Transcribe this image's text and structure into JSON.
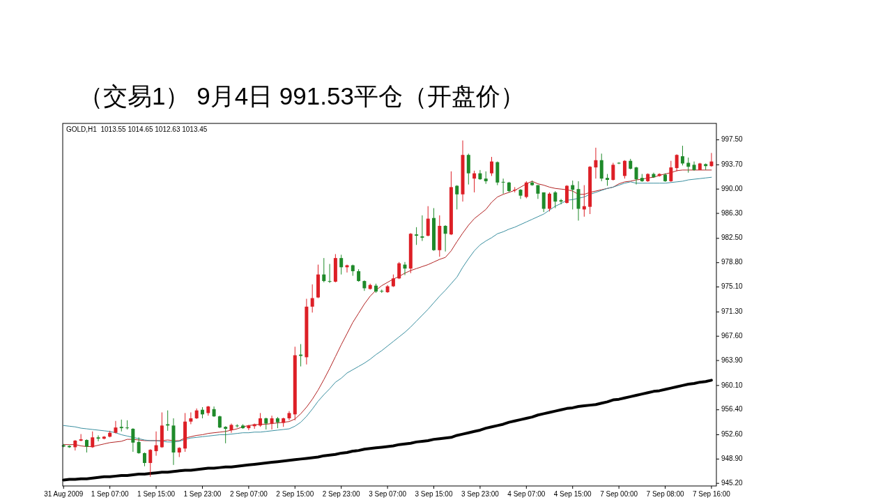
{
  "chart_data": {
    "type": "candlestick",
    "title": "（交易1） 9月4日 991.53平仓（开盘价）",
    "annotations": [
      "GOLD,H1  1013.55 1014.65 1012.63 1013.45"
    ],
    "categories": [
      "31 Aug 2009",
      null,
      null,
      null,
      null,
      null,
      null,
      null,
      "1 Sep 07:00",
      null,
      null,
      null,
      null,
      null,
      null,
      null,
      "1 Sep 15:00",
      null,
      null,
      null,
      null,
      null,
      null,
      null,
      "1 Sep 23:00",
      null,
      null,
      null,
      null,
      null,
      null,
      null,
      "2 Sep 07:00",
      null,
      null,
      null,
      null,
      null,
      null,
      null,
      "2 Sep 15:00",
      null,
      null,
      null,
      null,
      null,
      null,
      null,
      "2 Sep 23:00",
      null,
      null,
      null,
      null,
      null,
      null,
      null,
      "3 Sep 07:00",
      null,
      null,
      null,
      null,
      null,
      null,
      null,
      "3 Sep 15:00",
      null,
      null,
      null,
      null,
      null,
      null,
      null,
      "3 Sep 23:00",
      null,
      null,
      null,
      null,
      null,
      null,
      null,
      "4 Sep 07:00",
      null,
      null,
      null,
      null,
      null,
      null,
      null,
      "4 Sep 15:00",
      null,
      null,
      null,
      null,
      null,
      null,
      null,
      "7 Sep 00:00",
      null,
      null,
      null,
      null,
      null,
      null,
      null,
      "7 Sep 08:00",
      null,
      null,
      null,
      null,
      null,
      null,
      null,
      "7 Sep 16:00"
    ],
    "ohlc": [
      [
        951.0,
        951.2,
        950.7,
        950.8
      ],
      [
        950.9,
        951.0,
        950.6,
        950.7
      ],
      [
        950.7,
        951.8,
        950.2,
        951.7
      ],
      [
        951.7,
        952.7,
        951.6,
        951.9
      ],
      [
        951.8,
        951.9,
        949.9,
        950.8
      ],
      [
        950.7,
        953.1,
        950.6,
        952.2
      ],
      [
        952.2,
        952.5,
        951.6,
        952.0
      ],
      [
        952.0,
        952.4,
        951.9,
        952.3
      ],
      [
        952.3,
        953.2,
        952.2,
        952.9
      ],
      [
        952.9,
        954.7,
        952.8,
        953.7
      ],
      [
        953.8,
        954.9,
        953.1,
        953.6
      ],
      [
        953.7,
        954.8,
        953.4,
        953.6
      ],
      [
        953.5,
        953.6,
        950.0,
        951.4
      ],
      [
        951.5,
        952.2,
        949.7,
        949.8
      ],
      [
        949.8,
        949.9,
        947.8,
        948.3
      ],
      [
        948.3,
        950.4,
        946.2,
        950.3
      ],
      [
        950.1,
        953.1,
        949.4,
        951.0
      ],
      [
        950.7,
        956.0,
        950.6,
        954.0
      ],
      [
        954.2,
        956.3,
        953.2,
        954.0
      ],
      [
        954.0,
        955.1,
        948.0,
        949.9
      ],
      [
        949.9,
        950.7,
        949.2,
        950.6
      ],
      [
        950.5,
        955.9,
        950.0,
        954.6
      ],
      [
        954.6,
        956.0,
        954.2,
        955.1
      ],
      [
        955.1,
        956.6,
        955.0,
        956.3
      ],
      [
        956.4,
        956.8,
        955.1,
        955.7
      ],
      [
        955.9,
        957.0,
        955.5,
        956.9
      ],
      [
        956.5,
        956.9,
        955.3,
        955.4
      ],
      [
        955.4,
        955.5,
        953.6,
        953.7
      ],
      [
        953.8,
        953.9,
        951.3,
        953.5
      ],
      [
        953.3,
        954.3,
        952.9,
        954.1
      ],
      [
        954.0,
        954.2,
        953.7,
        953.9
      ],
      [
        954.0,
        954.2,
        953.5,
        953.6
      ],
      [
        953.6,
        954.1,
        953.3,
        954.0
      ],
      [
        953.9,
        954.3,
        953.5,
        954.2
      ],
      [
        954.0,
        955.9,
        953.8,
        955.1
      ],
      [
        955.1,
        955.2,
        953.4,
        954.3
      ],
      [
        954.3,
        955.5,
        953.4,
        955.1
      ],
      [
        955.1,
        955.3,
        953.6,
        954.5
      ],
      [
        954.4,
        955.2,
        953.8,
        955.1
      ],
      [
        955.1,
        956.2,
        954.8,
        955.9
      ],
      [
        955.7,
        966.0,
        954.8,
        964.7
      ],
      [
        964.8,
        966.4,
        963.0,
        964.6
      ],
      [
        964.4,
        973.3,
        963.3,
        972.1
      ],
      [
        972.1,
        975.5,
        971.2,
        973.4
      ],
      [
        973.5,
        978.5,
        973.4,
        977.0
      ],
      [
        977.0,
        979.5,
        975.8,
        976.0
      ],
      [
        976.0,
        978.6,
        975.7,
        975.9
      ],
      [
        975.9,
        980.1,
        975.8,
        979.5
      ],
      [
        979.5,
        980.0,
        977.0,
        978.1
      ],
      [
        978.1,
        978.5,
        977.3,
        978.4
      ],
      [
        978.4,
        978.5,
        976.8,
        977.5
      ],
      [
        977.5,
        977.8,
        975.9,
        976.0
      ],
      [
        976.0,
        976.1,
        974.5,
        974.9
      ],
      [
        974.8,
        975.6,
        974.7,
        975.4
      ],
      [
        975.3,
        975.6,
        974.2,
        974.4
      ],
      [
        974.5,
        974.7,
        974.2,
        974.4
      ],
      [
        974.3,
        975.4,
        974.2,
        975.2
      ],
      [
        975.2,
        977.0,
        975.1,
        976.4
      ],
      [
        976.4,
        978.9,
        976.3,
        978.7
      ],
      [
        978.5,
        978.9,
        976.9,
        977.9
      ],
      [
        977.9,
        983.3,
        977.2,
        983.2
      ],
      [
        983.1,
        984.2,
        981.5,
        982.9
      ],
      [
        982.8,
        986.0,
        982.1,
        982.6
      ],
      [
        982.9,
        987.4,
        982.8,
        985.5
      ],
      [
        985.6,
        987.1,
        980.6,
        980.7
      ],
      [
        980.7,
        986.0,
        979.7,
        984.4
      ],
      [
        984.4,
        984.5,
        980.5,
        983.2
      ],
      [
        983.1,
        992.7,
        983.0,
        990.3
      ],
      [
        990.5,
        990.6,
        986.9,
        989.2
      ],
      [
        989.2,
        997.4,
        988.1,
        995.2
      ],
      [
        995.2,
        995.4,
        990.7,
        992.4
      ],
      [
        991.6,
        992.8,
        989.5,
        992.4
      ],
      [
        992.4,
        992.9,
        991.4,
        991.5
      ],
      [
        991.6,
        992.7,
        990.8,
        991.2
      ],
      [
        992.4,
        994.9,
        992.0,
        994.2
      ],
      [
        994.1,
        994.2,
        990.6,
        991.0
      ],
      [
        991.1,
        991.6,
        989.3,
        991.0
      ],
      [
        991.0,
        991.1,
        989.5,
        989.7
      ],
      [
        989.8,
        990.3,
        989.5,
        989.9
      ],
      [
        989.9,
        990.0,
        988.5,
        989.0
      ],
      [
        988.8,
        991.2,
        988.6,
        991.0
      ],
      [
        991.0,
        991.3,
        990.5,
        990.6
      ],
      [
        990.6,
        990.6,
        988.5,
        989.3
      ],
      [
        989.5,
        989.5,
        986.5,
        987.0
      ],
      [
        987.0,
        989.5,
        986.6,
        989.3
      ],
      [
        989.5,
        989.7,
        987.1,
        988.1
      ],
      [
        988.3,
        988.5,
        987.7,
        988.1
      ],
      [
        987.9,
        990.6,
        987.8,
        990.5
      ],
      [
        990.6,
        991.3,
        986.9,
        989.9
      ],
      [
        990.0,
        991.2,
        985.2,
        987.0
      ],
      [
        986.9,
        990.6,
        985.8,
        987.4
      ],
      [
        987.3,
        993.5,
        986.2,
        993.4
      ],
      [
        993.3,
        996.3,
        991.6,
        994.4
      ],
      [
        994.4,
        995.4,
        991.2,
        991.6
      ],
      [
        991.7,
        992.3,
        990.5,
        991.4
      ],
      [
        991.4,
        994.0,
        991.3,
        993.7
      ],
      [
        994.0,
        994.1,
        993.8,
        993.9
      ],
      [
        992.0,
        994.4,
        991.6,
        994.3
      ],
      [
        994.3,
        994.6,
        993.0,
        993.1
      ],
      [
        993.3,
        993.4,
        990.7,
        991.5
      ],
      [
        991.7,
        992.3,
        991.1,
        991.2
      ],
      [
        991.2,
        992.4,
        991.1,
        992.3
      ],
      [
        992.3,
        992.5,
        991.7,
        991.8
      ],
      [
        992.0,
        992.4,
        991.9,
        992.3
      ],
      [
        992.2,
        992.4,
        991.1,
        991.2
      ],
      [
        991.2,
        994.3,
        991.1,
        993.3
      ],
      [
        993.2,
        995.3,
        992.7,
        995.2
      ],
      [
        995.0,
        996.6,
        993.6,
        993.9
      ],
      [
        994.0,
        994.8,
        992.5,
        993.4
      ],
      [
        993.7,
        994.2,
        992.8,
        992.9
      ],
      [
        992.9,
        994.0,
        992.9,
        993.9
      ],
      [
        993.8,
        993.9,
        992.9,
        993.5
      ],
      [
        993.5,
        995.5,
        993.4,
        994.2
      ]
    ],
    "colors": [
      "#1f8a2a",
      "#1f8a2a",
      "#dd1f26",
      "#dd1f26",
      "#1f8a2a",
      "#dd1f26",
      "#1f8a2a",
      "#dd1f26",
      "#dd1f26",
      "#dd1f26",
      "#1f8a2a",
      "#1f8a2a",
      "#1f8a2a",
      "#1f8a2a",
      "#1f8a2a",
      "#dd1f26",
      "#dd1f26",
      "#dd1f26",
      "#1f8a2a",
      "#1f8a2a",
      "#dd1f26",
      "#dd1f26",
      "#dd1f26",
      "#dd1f26",
      "#1f8a2a",
      "#dd1f26",
      "#1f8a2a",
      "#1f8a2a",
      "#1f8a2a",
      "#dd1f26",
      "#1f8a2a",
      "#1f8a2a",
      "#dd1f26",
      "#dd1f26",
      "#dd1f26",
      "#1f8a2a",
      "#dd1f26",
      "#1f8a2a",
      "#dd1f26",
      "#dd1f26",
      "#dd1f26",
      "#1f8a2a",
      "#dd1f26",
      "#dd1f26",
      "#dd1f26",
      "#1f8a2a",
      "#1f8a2a",
      "#dd1f26",
      "#1f8a2a",
      "#dd1f26",
      "#1f8a2a",
      "#1f8a2a",
      "#1f8a2a",
      "#dd1f26",
      "#1f8a2a",
      "#1f8a2a",
      "#dd1f26",
      "#dd1f26",
      "#dd1f26",
      "#1f8a2a",
      "#dd1f26",
      "#1f8a2a",
      "#1f8a2a",
      "#dd1f26",
      "#1f8a2a",
      "#dd1f26",
      "#1f8a2a",
      "#dd1f26",
      "#1f8a2a",
      "#dd1f26",
      "#1f8a2a",
      "#dd1f26",
      "#1f8a2a",
      "#1f8a2a",
      "#dd1f26",
      "#1f8a2a",
      "#1f8a2a",
      "#1f8a2a",
      "#dd1f26",
      "#1f8a2a",
      "#dd1f26",
      "#1f8a2a",
      "#1f8a2a",
      "#1f8a2a",
      "#dd1f26",
      "#1f8a2a",
      "#1f8a2a",
      "#dd1f26",
      "#1f8a2a",
      "#1f8a2a",
      "#dd1f26",
      "#dd1f26",
      "#dd1f26",
      "#1f8a2a",
      "#1f8a2a",
      "#dd1f26",
      "#1f8a2a",
      "#dd1f26",
      "#1f8a2a",
      "#1f8a2a",
      "#1f8a2a",
      "#dd1f26",
      "#1f8a2a",
      "#dd1f26",
      "#1f8a2a",
      "#dd1f26",
      "#dd1f26",
      "#1f8a2a",
      "#1f8a2a",
      "#1f8a2a",
      "#dd1f26",
      "#1f8a2a",
      "#dd1f26"
    ],
    "series": [
      {
        "type": "line",
        "color": "#b22222",
        "values": [
          951.1,
          951.1,
          951.1,
          950.9,
          950.8,
          950.8,
          951.0,
          951.2,
          951.4,
          951.5,
          951.6,
          951.9,
          951.9,
          951.8,
          951.7,
          951.7,
          951.7,
          951.7,
          951.8,
          951.7,
          951.7,
          952.1,
          952.3,
          952.5,
          952.6,
          952.8,
          952.9,
          953.0,
          953.1,
          953.3,
          953.5,
          953.8,
          954.0,
          954.1,
          954.2,
          954.2,
          954.3,
          954.4,
          954.5,
          954.6,
          955.0,
          955.8,
          956.8,
          958.0,
          959.4,
          961.0,
          962.7,
          964.5,
          966.3,
          968.0,
          969.7,
          971.1,
          972.5,
          973.7,
          974.6,
          975.3,
          975.8,
          976.3,
          976.7,
          977.2,
          977.6,
          977.9,
          978.2,
          978.5,
          978.9,
          979.3,
          979.6,
          980.6,
          982.0,
          983.3,
          984.5,
          985.5,
          986.2,
          986.9,
          988.0,
          988.8,
          989.2,
          989.5,
          989.8,
          990.3,
          990.8,
          991.2,
          990.8,
          990.6,
          990.3,
          990.1,
          990.0,
          989.9,
          989.7,
          989.2,
          989.2,
          989.5,
          989.7,
          989.9,
          990.1,
          990.3,
          990.8,
          991.1,
          991.2,
          991.4,
          991.5,
          991.7,
          991.8,
          992.1,
          992.3,
          992.5,
          992.8,
          992.9,
          992.9,
          992.9,
          992.9,
          992.9,
          992.9
        ]
      },
      {
        "type": "line",
        "color": "#3a8fa0",
        "values": [
          954.0,
          953.9,
          953.8,
          953.6,
          953.5,
          953.4,
          953.3,
          953.2,
          953.1,
          952.9,
          952.6,
          952.4,
          952.2,
          952.0,
          951.8,
          951.7,
          951.7,
          951.6,
          951.5,
          951.5,
          951.6,
          951.9,
          952.1,
          952.2,
          952.3,
          952.4,
          952.5,
          952.6,
          952.6,
          952.7,
          952.8,
          952.9,
          952.9,
          953.0,
          953.0,
          953.1,
          953.2,
          953.3,
          953.4,
          953.5,
          953.9,
          954.5,
          955.4,
          956.5,
          957.7,
          958.7,
          959.6,
          960.6,
          961.2,
          962.0,
          962.5,
          963.0,
          963.5,
          964.1,
          964.8,
          965.4,
          966.1,
          966.8,
          967.5,
          968.2,
          969.0,
          969.9,
          970.8,
          971.7,
          972.7,
          973.7,
          974.6,
          975.6,
          976.6,
          978.1,
          979.4,
          980.6,
          981.5,
          982.1,
          982.6,
          983.2,
          983.5,
          983.9,
          984.2,
          984.6,
          985.0,
          985.4,
          985.8,
          986.2,
          986.8,
          987.4,
          987.8,
          988.3,
          988.4,
          988.6,
          988.8,
          989.2,
          989.5,
          989.8,
          990.1,
          990.3,
          990.6,
          990.9,
          991.1,
          990.9,
          990.9,
          990.9,
          990.9,
          990.9,
          990.9,
          991.0,
          991.1,
          991.2,
          991.4,
          991.5,
          991.6,
          991.7,
          991.8
        ]
      },
      {
        "type": "line",
        "color": "#000000",
        "values": [
          945.7,
          945.8,
          945.8,
          945.9,
          945.9,
          946.0,
          946.1,
          946.2,
          946.2,
          946.3,
          946.4,
          946.4,
          946.5,
          946.6,
          946.6,
          946.7,
          946.8,
          946.9,
          946.9,
          947.0,
          947.1,
          947.2,
          947.2,
          947.3,
          947.4,
          947.5,
          947.5,
          947.6,
          947.7,
          947.7,
          947.8,
          947.9,
          948.0,
          948.1,
          948.2,
          948.3,
          948.4,
          948.5,
          948.6,
          948.7,
          948.8,
          948.9,
          949.0,
          949.1,
          949.2,
          949.4,
          949.5,
          949.6,
          949.8,
          949.9,
          950.1,
          950.2,
          950.4,
          950.5,
          950.6,
          950.7,
          950.8,
          950.9,
          951.1,
          951.2,
          951.3,
          951.5,
          951.6,
          951.7,
          951.9,
          952.0,
          952.1,
          952.2,
          952.5,
          952.7,
          952.9,
          953.1,
          953.3,
          953.6,
          953.8,
          954.0,
          954.2,
          954.5,
          954.7,
          954.9,
          955.1,
          955.3,
          955.6,
          955.8,
          956.0,
          956.2,
          956.4,
          956.6,
          956.7,
          956.9,
          957.0,
          957.1,
          957.2,
          957.4,
          957.6,
          957.9,
          958.0,
          958.2,
          958.4,
          958.6,
          958.8,
          959.0,
          959.2,
          959.3,
          959.5,
          959.7,
          959.9,
          960.1,
          960.3,
          960.4,
          960.6,
          960.7,
          960.9
        ]
      }
    ],
    "ylim": [
      944.8,
      1000.0
    ],
    "yticks": [
      {
        "value": 997.5,
        "label": "997.50"
      },
      {
        "value": 993.7,
        "label": "993.70"
      },
      {
        "value": 990.0,
        "label": "990.00"
      },
      {
        "value": 986.3,
        "label": "986.30"
      },
      {
        "value": 982.5,
        "label": "982.50"
      },
      {
        "value": 978.8,
        "label": "978.80"
      },
      {
        "value": 975.1,
        "label": "975.10"
      },
      {
        "value": 971.3,
        "label": "971.30"
      },
      {
        "value": 967.6,
        "label": "967.60"
      },
      {
        "value": 963.9,
        "label": "963.90"
      },
      {
        "value": 960.1,
        "label": "960.10"
      },
      {
        "value": 956.4,
        "label": "956.40"
      },
      {
        "value": 952.6,
        "label": "952.60"
      },
      {
        "value": 948.9,
        "label": "948.90"
      },
      {
        "value": 945.2,
        "label": "945.20"
      }
    ]
  }
}
